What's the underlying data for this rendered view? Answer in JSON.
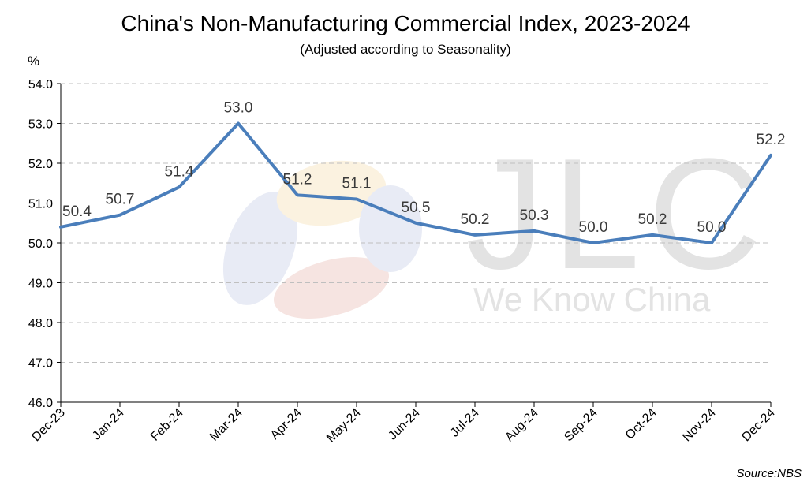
{
  "header": {
    "title": "China's Non-Manufacturing Commercial Index, 2023-2024",
    "subtitle": "(Adjusted according to Seasonality)",
    "unit": "%"
  },
  "footer": {
    "source": "Source:NBS"
  },
  "watermark": {
    "brand": "JLC",
    "tagline": "We Know China"
  },
  "colors": {
    "line": "#4a7ebb",
    "grid": "#bfbfbf",
    "label": "#3a3a3a"
  },
  "chart_data": {
    "type": "line",
    "title": "China's Non-Manufacturing Commercial Index, 2023-2024",
    "subtitle": "(Adjusted according to Seasonality)",
    "ylabel": "%",
    "ylim": [
      46.0,
      54.0
    ],
    "yticks": [
      "46.0",
      "47.0",
      "48.0",
      "49.0",
      "50.0",
      "51.0",
      "52.0",
      "53.0",
      "54.0"
    ],
    "grid": true,
    "categories": [
      "Dec-23",
      "Jan-24",
      "Feb-24",
      "Mar-24",
      "Apr-24",
      "May-24",
      "Jun-24",
      "Jul-24",
      "Aug-24",
      "Sep-24",
      "Oct-24",
      "Nov-24",
      "Dec-24"
    ],
    "series": [
      {
        "values": [
          50.4,
          50.7,
          51.4,
          53.0,
          51.2,
          51.1,
          50.5,
          50.2,
          50.3,
          50.0,
          50.2,
          50.0,
          52.2
        ]
      }
    ],
    "data_labels": [
      "50.4",
      "50.7",
      "51.4",
      "53.0",
      "51.2",
      "51.1",
      "50.5",
      "50.2",
      "50.3",
      "50.0",
      "50.2",
      "50.0",
      "52.2"
    ]
  }
}
